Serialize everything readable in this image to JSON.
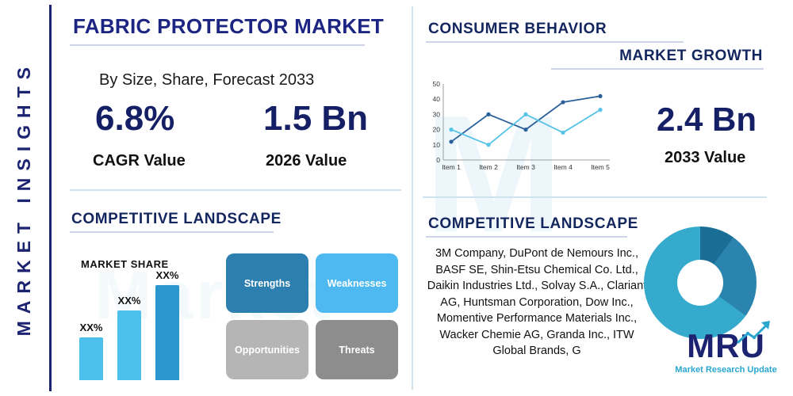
{
  "colors": {
    "navy": "#1c2370",
    "title_blue": "#1d2583",
    "heading_navy": "#13265e",
    "teal": "#2aa7cf",
    "divider": "#cfe3ee",
    "underline": "#ccd4e6"
  },
  "sidebar": {
    "label": "MARKET INSIGHTS"
  },
  "header": {
    "title": "FABRIC PROTECTOR MARKET",
    "subtitle": "By Size, Share, Forecast 2033"
  },
  "stats": {
    "cagr": {
      "value": "6.8%",
      "label": "CAGR Value"
    },
    "base": {
      "value": "1.5 Bn",
      "label": "2026 Value"
    },
    "forecast": {
      "value": "2.4 Bn",
      "label": "2033 Value"
    }
  },
  "sections": {
    "consumer_behavior": "CONSUMER BEHAVIOR",
    "market_growth": "MARKET GROWTH",
    "competitive_landscape": "COMPETITIVE LANDSCAPE",
    "market_share": "MARKET SHARE"
  },
  "swot": [
    {
      "label": "Strengths",
      "color": "#2c7fae"
    },
    {
      "label": "Weaknesses",
      "color": "#4db9f0"
    },
    {
      "label": "Opportunities",
      "color": "#b5b5b5"
    },
    {
      "label": "Threats",
      "color": "#8d8d8d"
    }
  ],
  "companies": "3M Company, DuPont de Nemours Inc., BASF SE, Shin-Etsu Chemical Co. Ltd., Daikin Industries Ltd., Solvay S.A., Clariant AG, Huntsman Corporation, Dow Inc., Momentive Performance Materials Inc., Wacker Chemie AG, Granda Inc., ITW Global Brands, G",
  "logo": {
    "name": "MRU",
    "tagline": "Market Research Update"
  },
  "watermark_primary": "M",
  "watermark_secondary": "Market",
  "chart_data": [
    {
      "type": "line",
      "title": "MARKET GROWTH",
      "categories": [
        "Item 1",
        "Item 2",
        "Item 3",
        "Item 4",
        "Item 5"
      ],
      "series": [
        {
          "name": "series-dark",
          "color": "#2a6099",
          "values": [
            12,
            30,
            20,
            38,
            42
          ]
        },
        {
          "name": "series-light",
          "color": "#56c3e8",
          "values": [
            20,
            10,
            30,
            18,
            33
          ]
        }
      ],
      "ylim": [
        0,
        50
      ],
      "yticks": [
        0,
        10,
        20,
        30,
        40,
        50
      ],
      "grid": false,
      "legend": false
    },
    {
      "type": "bar",
      "title": "MARKET SHARE",
      "categories": [
        "XX%",
        "XX%",
        "XX%"
      ],
      "values": [
        27,
        44,
        60
      ],
      "colors": [
        "#4cc0ea",
        "#4cc0ea",
        "#2a97ce"
      ],
      "ylim": [
        0,
        70
      ]
    },
    {
      "type": "pie",
      "title": "COMPETITIVE LANDSCAPE",
      "values": [
        10,
        25,
        65
      ],
      "colors": [
        "#1a6e96",
        "#2b84ad",
        "#36aacd"
      ],
      "donut": true
    }
  ]
}
